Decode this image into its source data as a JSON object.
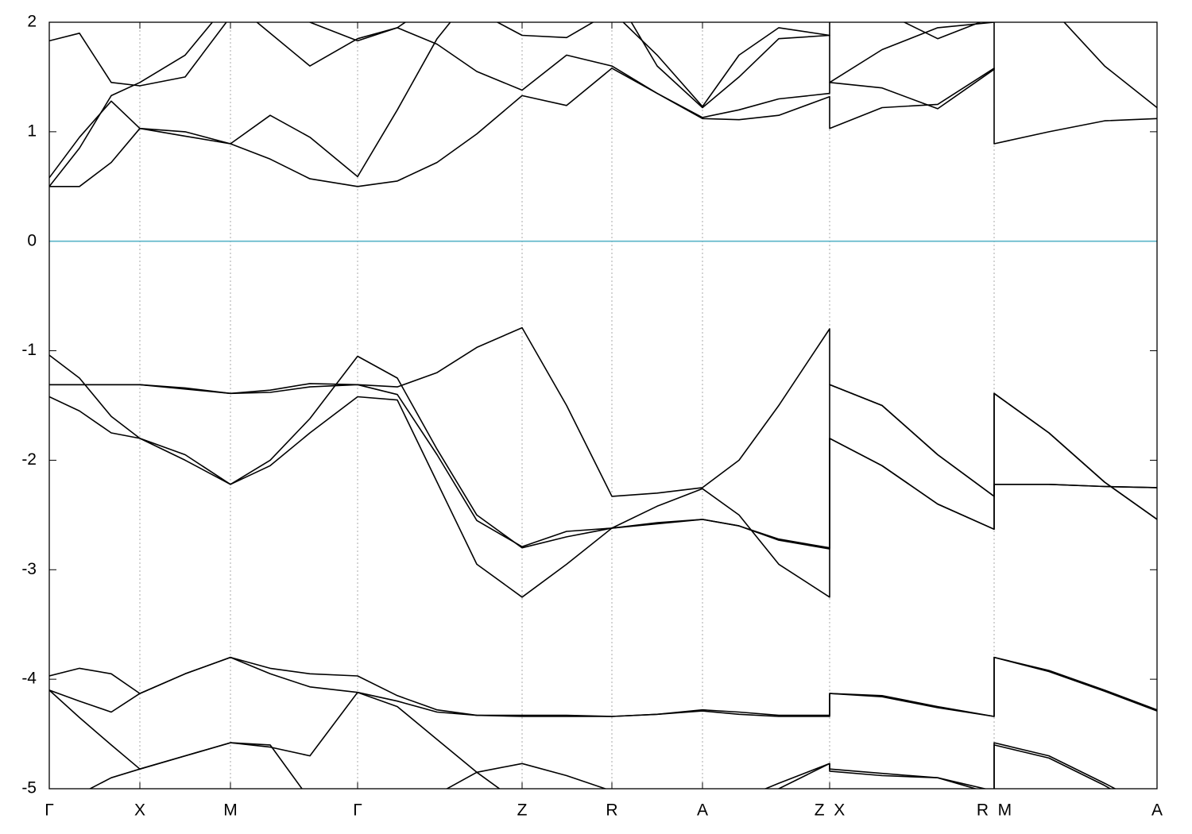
{
  "chart_data": {
    "type": "line",
    "x": [
      0,
      38,
      78,
      114,
      171,
      228,
      278,
      328,
      388,
      438,
      488,
      538,
      595,
      651,
      708,
      765,
      822,
      868,
      918,
      982,
      982,
      1048,
      1118,
      1189,
      1189,
      1258,
      1328,
      1394
    ],
    "xlim": [
      0,
      1394
    ],
    "xticks": [
      {
        "value": 0,
        "label": "Γ"
      },
      {
        "value": 114,
        "label": "X"
      },
      {
        "value": 228,
        "label": "M"
      },
      {
        "value": 388,
        "label": "Γ"
      },
      {
        "value": 595,
        "label": "Z"
      },
      {
        "value": 708,
        "label": "R"
      },
      {
        "value": 822,
        "label": "A"
      },
      {
        "value": 982,
        "label": "Z  X"
      },
      {
        "value": 1189,
        "label": "R  M"
      },
      {
        "value": 1394,
        "label": "A"
      }
    ],
    "ylim": [
      -5,
      2
    ],
    "yticks": [
      -5,
      -4,
      -3,
      -2,
      -1,
      0,
      1,
      2
    ],
    "grid": "x",
    "line_color": "#000000",
    "zero_line_color": "#5ab4c8",
    "series": [
      {
        "values": [
          -1.31,
          -1.31,
          -1.31,
          -1.31,
          -1.35,
          -1.39,
          -1.36,
          -1.3,
          -1.31,
          -1.33,
          -1.2,
          -0.97,
          -0.79,
          -1.5,
          -2.33,
          -2.3,
          -2.25,
          -2.0,
          -1.5,
          -0.8,
          -1.31,
          -1.5,
          -1.95,
          -2.33,
          -1.39,
          -1.75,
          -2.2,
          -2.54
        ]
      },
      {
        "values": [
          -1.04,
          -1.25,
          -1.6,
          -1.8,
          -2.0,
          -2.22,
          -2.0,
          -1.62,
          -1.05,
          -1.25,
          -1.9,
          -2.5,
          -2.8,
          -2.7,
          -2.62,
          -2.58,
          -2.54,
          -2.6,
          -2.72,
          -2.8,
          -1.31,
          -1.5,
          -1.95,
          -2.33,
          -2.22,
          -2.22,
          -2.24,
          -2.25
        ]
      },
      {
        "values": [
          -1.31,
          -1.31,
          -1.31,
          -1.31,
          -1.34,
          -1.39,
          -1.38,
          -1.33,
          -1.31,
          -1.4,
          -1.95,
          -2.55,
          -2.79,
          -2.65,
          -2.62,
          -2.57,
          -2.54,
          -2.6,
          -2.73,
          -2.81,
          -1.8,
          -2.05,
          -2.4,
          -2.63,
          -1.39,
          -1.75,
          -2.2,
          -2.54
        ]
      },
      {
        "values": [
          -1.42,
          -1.55,
          -1.75,
          -1.8,
          -1.95,
          -2.22,
          -2.05,
          -1.75,
          -1.42,
          -1.45,
          -2.2,
          -2.95,
          -3.25,
          -2.95,
          -2.62,
          -2.42,
          -2.26,
          -2.5,
          -2.95,
          -3.25,
          -1.8,
          -2.05,
          -2.4,
          -2.63,
          -2.22,
          -2.22,
          -2.24,
          -2.25
        ]
      },
      {
        "values": [
          -3.97,
          -3.9,
          -3.95,
          -4.13,
          -3.95,
          -3.8,
          -3.9,
          -3.95,
          -3.97,
          -4.15,
          -4.28,
          -4.33,
          -4.33,
          -4.33,
          -4.34,
          -4.32,
          -4.28,
          -4.3,
          -4.33,
          -4.33,
          -4.13,
          -4.15,
          -4.25,
          -4.34,
          -3.8,
          -3.92,
          -4.1,
          -4.28
        ]
      },
      {
        "values": [
          -4.1,
          -4.2,
          -4.3,
          -4.13,
          -3.95,
          -3.8,
          -3.95,
          -4.07,
          -4.12,
          -4.2,
          -4.3,
          -4.33,
          -4.34,
          -4.34,
          -4.34,
          -4.32,
          -4.29,
          -4.32,
          -4.34,
          -4.34,
          -4.13,
          -4.16,
          -4.26,
          -4.34,
          -3.8,
          -3.93,
          -4.11,
          -4.29
        ]
      },
      {
        "values": [
          -4.1,
          -4.35,
          -4.6,
          -4.82,
          -4.7,
          -4.58,
          -4.62,
          -4.7,
          -4.12,
          -4.25,
          -4.55,
          -4.85,
          -5.15,
          -5.3,
          -5.4,
          -5.4,
          -5.3,
          -5.1,
          -4.95,
          -4.77,
          -4.82,
          -4.86,
          -4.9,
          -5.02,
          -4.58,
          -4.7,
          -4.95,
          -5.2
        ]
      },
      {
        "values": [
          -5.4,
          -5.05,
          -4.9,
          -4.82,
          -4.7,
          -4.58,
          -4.6,
          -5.1,
          -5.4,
          -5.3,
          -5.05,
          -4.85,
          -4.77,
          -4.88,
          -5.02,
          -5.2,
          -5.3,
          -5.2,
          -5.0,
          -4.77,
          -4.84,
          -4.88,
          -4.9,
          -5.05,
          -4.6,
          -4.72,
          -4.97,
          -5.25
        ]
      },
      {
        "values": [
          0.5,
          0.5,
          0.72,
          1.03,
          1.0,
          0.89,
          0.75,
          0.57,
          0.5,
          0.55,
          0.72,
          0.98,
          1.33,
          1.24,
          1.58,
          1.35,
          1.12,
          1.11,
          1.15,
          1.32,
          1.03,
          1.22,
          1.25,
          1.58,
          0.89,
          1.0,
          1.1,
          1.12
        ]
      },
      {
        "values": [
          0.58,
          0.95,
          1.28,
          1.03,
          0.96,
          0.89,
          1.15,
          0.95,
          0.59,
          1.2,
          1.85,
          2.3,
          2.5,
          2.4,
          2.3,
          1.6,
          1.22,
          1.5,
          1.85,
          1.88,
          1.45,
          1.75,
          1.95,
          2.0,
          2.3,
          2.15,
          1.6,
          1.22
        ]
      },
      {
        "values": [
          0.5,
          0.85,
          1.33,
          1.45,
          1.7,
          2.2,
          1.9,
          1.6,
          1.85,
          1.95,
          1.8,
          1.55,
          1.38,
          1.7,
          1.6,
          1.35,
          1.13,
          1.2,
          1.3,
          1.35,
          1.45,
          1.4,
          1.21,
          1.57,
          2.2,
          2.3,
          2.4,
          2.5
        ]
      },
      {
        "values": [
          1.83,
          1.9,
          1.45,
          1.42,
          1.5,
          2.05,
          2.3,
          2.0,
          1.83,
          1.95,
          2.2,
          2.1,
          1.88,
          1.86,
          2.1,
          1.7,
          1.23,
          1.7,
          1.95,
          1.88,
          2.2,
          2.1,
          1.85,
          2.05,
          2.5,
          2.4,
          2.2,
          2.1
        ]
      }
    ]
  }
}
